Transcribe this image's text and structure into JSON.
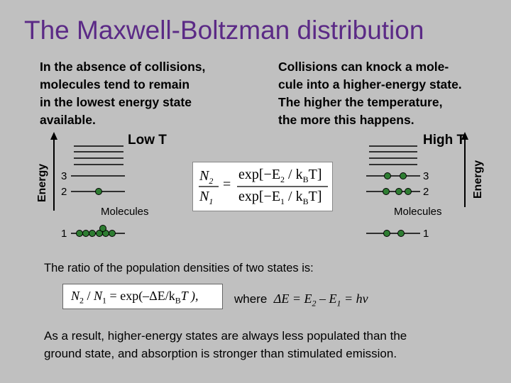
{
  "slide": {
    "title": "The Maxwell-Boltzman distribution",
    "left_text": "In the absence of collisions,\nmolecules tend to remain\nin the lowest energy state\navailable.",
    "right_text": "Collisions can knock a mole-\ncule into a higher-energy state.\nThe higher the temperature,\nthe more this happens.",
    "low_t": "Low T",
    "high_t": "High T",
    "energy_label": "Energy",
    "level_labels": [
      "3",
      "2",
      "1"
    ],
    "molecules_label": "Molecules",
    "ratio_text": "The ratio of the population densities of two states is:",
    "formula": {
      "n2": "N",
      "n2_sub": "2",
      "slash": " / ",
      "n1": "N",
      "n1_sub": "1",
      "rest": " = exp(–ΔE/k",
      "b_sub": "B",
      "tail": "T ),"
    },
    "where": {
      "word": "where",
      "expr": "ΔE = E",
      "sub2": "2",
      "minus": " – E",
      "sub1": "1",
      "end": " = hν"
    },
    "result_text": "As a result, higher-energy states are always less populated than the\nground state, and absorption is stronger than stimulated emission.",
    "equation_image": {
      "lhs_top": "N",
      "lhs_top_sub": "2",
      "lhs_bottom": "N",
      "lhs_bottom_sub": "1",
      "equals": "=",
      "num": "exp[−E",
      "num_sub": "2",
      "num_rest": " / k",
      "num_b": "B",
      "num_end": "T]",
      "den": "exp[−E",
      "den_sub": "1",
      "den_rest": " / k",
      "den_b": "B",
      "den_end": "T]"
    }
  },
  "colors": {
    "title": "#5b2a86",
    "molecule": "#2e7d32",
    "background": "#c0c0c0"
  }
}
